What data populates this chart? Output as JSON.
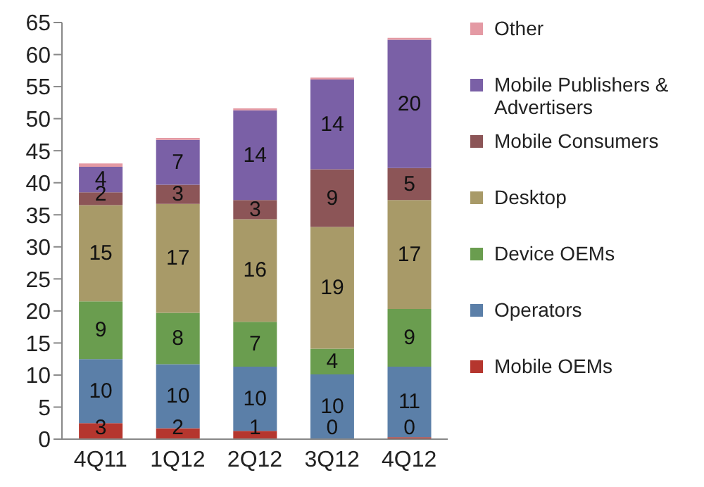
{
  "chart_data": {
    "type": "bar",
    "stacked": true,
    "categories": [
      "4Q11",
      "1Q12",
      "2Q12",
      "3Q12",
      "4Q12"
    ],
    "series": [
      {
        "name": "Mobile OEMs",
        "color": "#b5362e",
        "values": [
          2.5,
          1.7,
          1.3,
          0.1,
          0.3
        ],
        "value_labels": [
          "3",
          "2",
          "1",
          "0",
          "0"
        ]
      },
      {
        "name": "Operators",
        "color": "#5b7fa8",
        "values": [
          10,
          10,
          10,
          10,
          11
        ]
      },
      {
        "name": "Device OEMs",
        "color": "#6a9d4f",
        "values": [
          9,
          8,
          7,
          4,
          9
        ]
      },
      {
        "name": "Desktop",
        "color": "#a89a68",
        "values": [
          15,
          17,
          16,
          19,
          17
        ]
      },
      {
        "name": "Mobile Consumers",
        "color": "#8c5557",
        "values": [
          2,
          3,
          3,
          9,
          5
        ]
      },
      {
        "name": "Mobile Publishers & Advertisers",
        "color": "#7a60a6",
        "values": [
          4,
          7,
          14,
          14,
          20
        ]
      },
      {
        "name": "Other",
        "color": "#e49aa4",
        "values": [
          0.5,
          0.3,
          0.3,
          0.3,
          0.3
        ],
        "value_labels": [
          null,
          null,
          null,
          null,
          null
        ]
      }
    ],
    "data_labels": true,
    "ylim": [
      0,
      65
    ],
    "yticks": [
      0,
      5,
      10,
      15,
      20,
      25,
      30,
      35,
      40,
      45,
      50,
      55,
      60,
      65
    ],
    "legend": "right"
  }
}
